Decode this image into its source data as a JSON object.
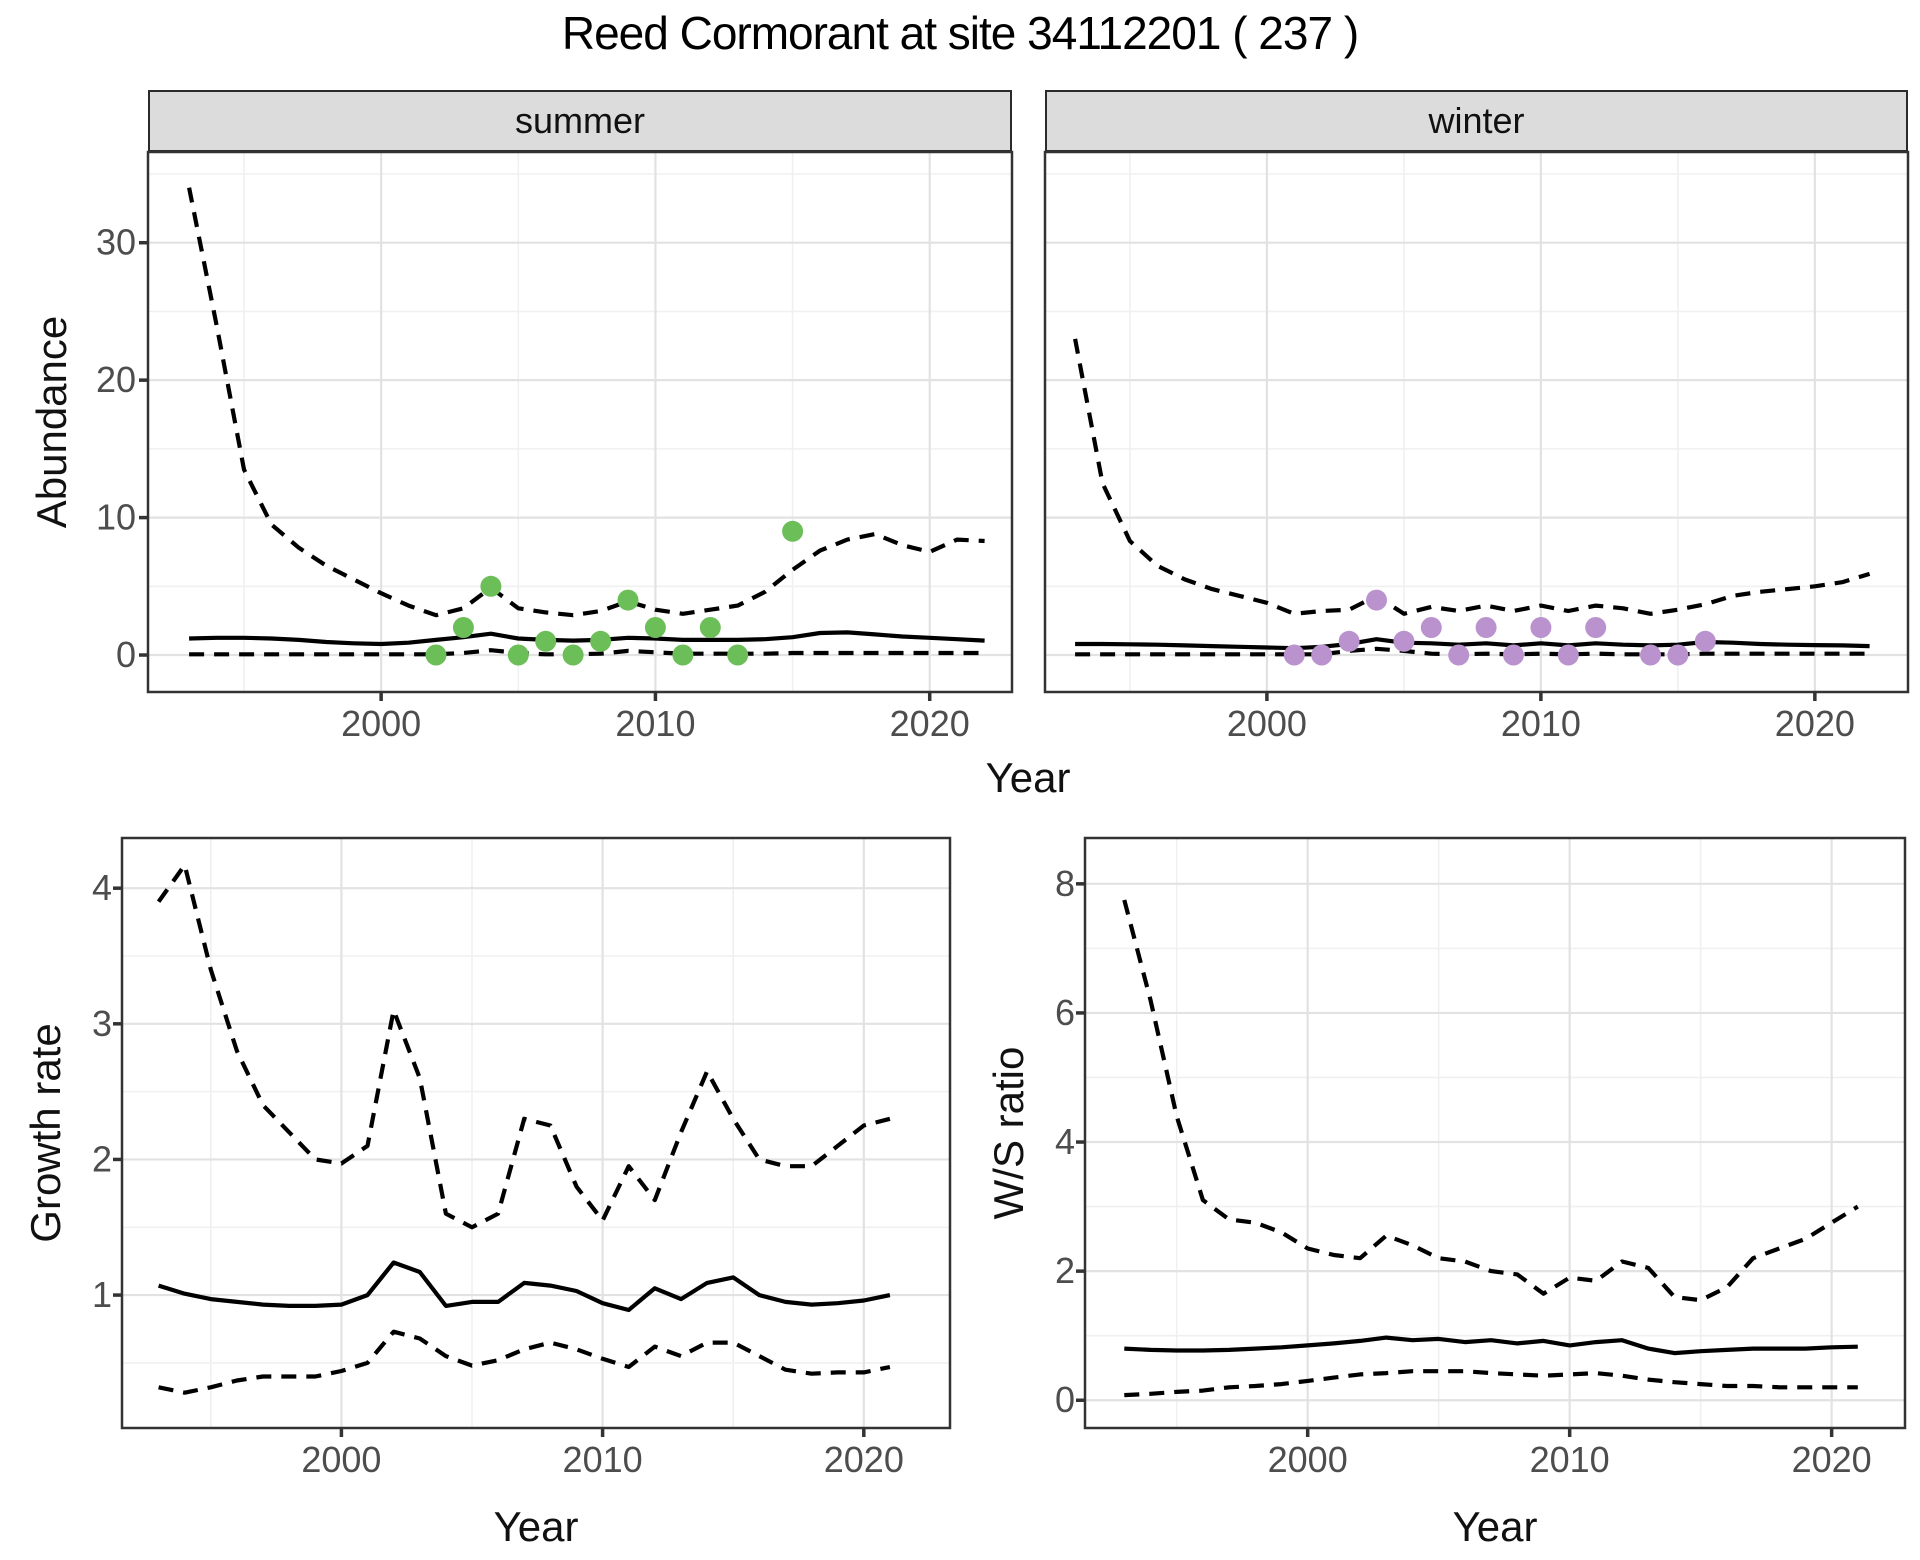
{
  "title": "Reed Cormorant at site 34112201 ( 237 )",
  "shared_xlabel": "Year",
  "colors": {
    "summer_point": "#6CBE59",
    "winter_point": "#BA93CE",
    "line": "#000000",
    "grid_major": "#E2E2E2",
    "grid_minor": "#F0F0F0",
    "panel_border": "#333333",
    "strip_bg": "#DCDCDC",
    "tick_text": "#4D4D4D"
  },
  "chart_data": [
    {
      "id": "abundance-summer",
      "type": "line",
      "facet_label": "summer",
      "ylabel": "Abundance",
      "xlabel": "Year",
      "x": [
        1993,
        1994,
        1995,
        1996,
        1997,
        1998,
        1999,
        2000,
        2001,
        2002,
        2003,
        2004,
        2005,
        2006,
        2007,
        2008,
        2009,
        2010,
        2011,
        2012,
        2013,
        2014,
        2015,
        2016,
        2017,
        2018,
        2019,
        2020,
        2021,
        2022
      ],
      "series": [
        {
          "name": "median",
          "linetype": "solid",
          "values": [
            1.2,
            1.25,
            1.25,
            1.2,
            1.1,
            0.95,
            0.85,
            0.8,
            0.9,
            1.1,
            1.3,
            1.55,
            1.2,
            1.1,
            1.05,
            1.1,
            1.25,
            1.2,
            1.1,
            1.1,
            1.1,
            1.15,
            1.3,
            1.6,
            1.65,
            1.5,
            1.35,
            1.25,
            1.15,
            1.05
          ]
        },
        {
          "name": "upper_ci",
          "linetype": "dashed",
          "values": [
            34,
            24,
            13.5,
            9.5,
            7.8,
            6.5,
            5.5,
            4.5,
            3.6,
            2.9,
            3.4,
            4.9,
            3.4,
            3.1,
            2.9,
            3.2,
            3.9,
            3.3,
            3.0,
            3.3,
            3.6,
            4.6,
            6.2,
            7.6,
            8.4,
            8.8,
            8.0,
            7.5,
            8.4,
            8.3
          ]
        },
        {
          "name": "lower_ci",
          "linetype": "dashed",
          "values": [
            0.05,
            0.05,
            0.05,
            0.05,
            0.05,
            0.05,
            0.05,
            0.05,
            0.05,
            0.05,
            0.15,
            0.35,
            0.15,
            0.05,
            0.05,
            0.1,
            0.3,
            0.2,
            0.1,
            0.1,
            0.1,
            0.1,
            0.15,
            0.15,
            0.15,
            0.15,
            0.15,
            0.15,
            0.15,
            0.15
          ]
        }
      ],
      "point_color": "#6CBE59",
      "points": [
        [
          2002,
          0
        ],
        [
          2003,
          2
        ],
        [
          2004,
          5
        ],
        [
          2005,
          0
        ],
        [
          2006,
          1
        ],
        [
          2007,
          0
        ],
        [
          2008,
          1
        ],
        [
          2009,
          4
        ],
        [
          2010,
          2
        ],
        [
          2011,
          0
        ],
        [
          2012,
          2
        ],
        [
          2013,
          0
        ],
        [
          2015,
          9
        ]
      ],
      "xticks": [
        "2000",
        "2010",
        "2020"
      ],
      "xticks_at": [
        2000,
        2010,
        2020
      ],
      "xminor": [
        1995,
        2005,
        2015
      ],
      "yticks": [
        "0",
        "10",
        "20",
        "30"
      ],
      "yticks_at": [
        0,
        10,
        20,
        30
      ],
      "yminor": [
        5,
        15,
        25,
        35
      ]
    },
    {
      "id": "abundance-winter",
      "type": "line",
      "facet_label": "winter",
      "ylabel": "Abundance",
      "xlabel": "Year",
      "x": [
        1993,
        1994,
        1995,
        1996,
        1997,
        1998,
        1999,
        2000,
        2001,
        2002,
        2003,
        2004,
        2005,
        2006,
        2007,
        2008,
        2009,
        2010,
        2011,
        2012,
        2013,
        2014,
        2015,
        2016,
        2017,
        2018,
        2019,
        2020,
        2021,
        2022
      ],
      "series": [
        {
          "name": "median",
          "linetype": "solid",
          "values": [
            0.8,
            0.8,
            0.78,
            0.75,
            0.7,
            0.65,
            0.6,
            0.55,
            0.5,
            0.6,
            0.8,
            1.15,
            0.9,
            0.85,
            0.75,
            0.85,
            0.7,
            0.85,
            0.7,
            0.85,
            0.75,
            0.7,
            0.75,
            0.95,
            0.9,
            0.8,
            0.75,
            0.72,
            0.7,
            0.65
          ]
        },
        {
          "name": "upper_ci",
          "linetype": "dashed",
          "values": [
            23,
            12.5,
            8.3,
            6.5,
            5.5,
            4.8,
            4.3,
            3.8,
            3.0,
            3.2,
            3.3,
            4.3,
            3.0,
            3.5,
            3.2,
            3.6,
            3.2,
            3.6,
            3.2,
            3.6,
            3.4,
            3.0,
            3.3,
            3.7,
            4.3,
            4.6,
            4.8,
            5.0,
            5.3,
            5.9
          ]
        },
        {
          "name": "lower_ci",
          "linetype": "dashed",
          "values": [
            0.05,
            0.05,
            0.05,
            0.05,
            0.05,
            0.05,
            0.05,
            0.05,
            0.05,
            0.05,
            0.3,
            0.45,
            0.3,
            0.1,
            0.05,
            0.1,
            0.05,
            0.1,
            0.05,
            0.1,
            0.05,
            0.05,
            0.05,
            0.1,
            0.1,
            0.1,
            0.1,
            0.1,
            0.1,
            0.1
          ]
        }
      ],
      "point_color": "#BA93CE",
      "points": [
        [
          2001,
          0
        ],
        [
          2002,
          0
        ],
        [
          2003,
          1
        ],
        [
          2004,
          4
        ],
        [
          2005,
          1
        ],
        [
          2006,
          2
        ],
        [
          2007,
          0
        ],
        [
          2008,
          2
        ],
        [
          2009,
          0
        ],
        [
          2010,
          2
        ],
        [
          2011,
          0
        ],
        [
          2012,
          2
        ],
        [
          2014,
          0
        ],
        [
          2015,
          0
        ],
        [
          2016,
          1
        ]
      ],
      "xticks": [
        "2000",
        "2010",
        "2020"
      ],
      "xticks_at": [
        2000,
        2010,
        2020
      ],
      "xminor": [
        1995,
        2005,
        2015
      ],
      "yticks": [
        "0",
        "10",
        "20",
        "30"
      ],
      "yticks_at": [
        0,
        10,
        20,
        30
      ],
      "yminor": [
        5,
        15,
        25,
        35
      ]
    },
    {
      "id": "growth-rate",
      "type": "line",
      "facet_label": "",
      "ylabel": "Growth rate",
      "xlabel": "Year",
      "x": [
        1993,
        1994,
        1995,
        1996,
        1997,
        1998,
        1999,
        2000,
        2001,
        2002,
        2003,
        2004,
        2005,
        2006,
        2007,
        2008,
        2009,
        2010,
        2011,
        2012,
        2013,
        2014,
        2015,
        2016,
        2017,
        2018,
        2019,
        2020,
        2021
      ],
      "series": [
        {
          "name": "median",
          "linetype": "solid",
          "values": [
            1.07,
            1.01,
            0.97,
            0.95,
            0.93,
            0.92,
            0.92,
            0.93,
            1.0,
            1.24,
            1.17,
            0.92,
            0.95,
            0.95,
            1.09,
            1.07,
            1.03,
            0.94,
            0.89,
            1.05,
            0.97,
            1.09,
            1.13,
            1.0,
            0.95,
            0.93,
            0.94,
            0.96,
            1.0
          ]
        },
        {
          "name": "upper_ci",
          "linetype": "dashed",
          "values": [
            3.9,
            4.17,
            3.4,
            2.8,
            2.4,
            2.2,
            2.0,
            1.97,
            2.1,
            3.1,
            2.6,
            1.6,
            1.5,
            1.6,
            2.3,
            2.25,
            1.8,
            1.55,
            1.95,
            1.7,
            2.2,
            2.65,
            2.3,
            2.0,
            1.95,
            1.95,
            2.1,
            2.25,
            2.3
          ]
        },
        {
          "name": "lower_ci",
          "linetype": "dashed",
          "values": [
            0.32,
            0.28,
            0.32,
            0.37,
            0.4,
            0.4,
            0.4,
            0.44,
            0.5,
            0.73,
            0.68,
            0.55,
            0.48,
            0.52,
            0.6,
            0.65,
            0.6,
            0.53,
            0.47,
            0.62,
            0.55,
            0.65,
            0.65,
            0.55,
            0.45,
            0.42,
            0.43,
            0.43,
            0.47
          ]
        }
      ],
      "point_color": null,
      "points": [],
      "xticks": [
        "2000",
        "2010",
        "2020"
      ],
      "xticks_at": [
        2000,
        2010,
        2020
      ],
      "xminor": [
        1995,
        2005,
        2015
      ],
      "yticks": [
        "1",
        "2",
        "3",
        "4"
      ],
      "yticks_at": [
        1,
        2,
        3,
        4
      ],
      "yminor": [
        0.5,
        1.5,
        2.5,
        3.5
      ]
    },
    {
      "id": "ws-ratio",
      "type": "line",
      "facet_label": "",
      "ylabel": "W/S ratio",
      "xlabel": "Year",
      "x": [
        1993,
        1994,
        1995,
        1996,
        1997,
        1998,
        1999,
        2000,
        2001,
        2002,
        2003,
        2004,
        2005,
        2006,
        2007,
        2008,
        2009,
        2010,
        2011,
        2012,
        2013,
        2014,
        2015,
        2016,
        2017,
        2018,
        2019,
        2020,
        2021
      ],
      "series": [
        {
          "name": "median",
          "linetype": "solid",
          "values": [
            0.8,
            0.78,
            0.77,
            0.77,
            0.78,
            0.8,
            0.82,
            0.85,
            0.88,
            0.92,
            0.97,
            0.93,
            0.95,
            0.9,
            0.93,
            0.88,
            0.92,
            0.85,
            0.9,
            0.93,
            0.8,
            0.73,
            0.76,
            0.78,
            0.8,
            0.8,
            0.8,
            0.82,
            0.83
          ]
        },
        {
          "name": "upper_ci",
          "linetype": "dashed",
          "values": [
            7.75,
            6.2,
            4.4,
            3.1,
            2.8,
            2.75,
            2.6,
            2.35,
            2.25,
            2.2,
            2.55,
            2.4,
            2.2,
            2.15,
            2.0,
            1.95,
            1.65,
            1.9,
            1.85,
            2.15,
            2.05,
            1.6,
            1.55,
            1.75,
            2.2,
            2.35,
            2.5,
            2.75,
            3.0
          ]
        },
        {
          "name": "lower_ci",
          "linetype": "dashed",
          "values": [
            0.08,
            0.1,
            0.13,
            0.15,
            0.2,
            0.22,
            0.25,
            0.3,
            0.35,
            0.4,
            0.42,
            0.45,
            0.45,
            0.45,
            0.42,
            0.4,
            0.38,
            0.4,
            0.42,
            0.38,
            0.32,
            0.28,
            0.25,
            0.22,
            0.22,
            0.2,
            0.2,
            0.2,
            0.2
          ]
        }
      ],
      "point_color": null,
      "points": [],
      "xticks": [
        "2000",
        "2010",
        "2020"
      ],
      "xticks_at": [
        2000,
        2010,
        2020
      ],
      "xminor": [
        1995,
        2005,
        2015
      ],
      "yticks": [
        "0",
        "2",
        "4",
        "6",
        "8"
      ],
      "yticks_at": [
        0,
        2,
        4,
        6,
        8
      ],
      "yminor": [
        1,
        3,
        5,
        7
      ]
    }
  ]
}
